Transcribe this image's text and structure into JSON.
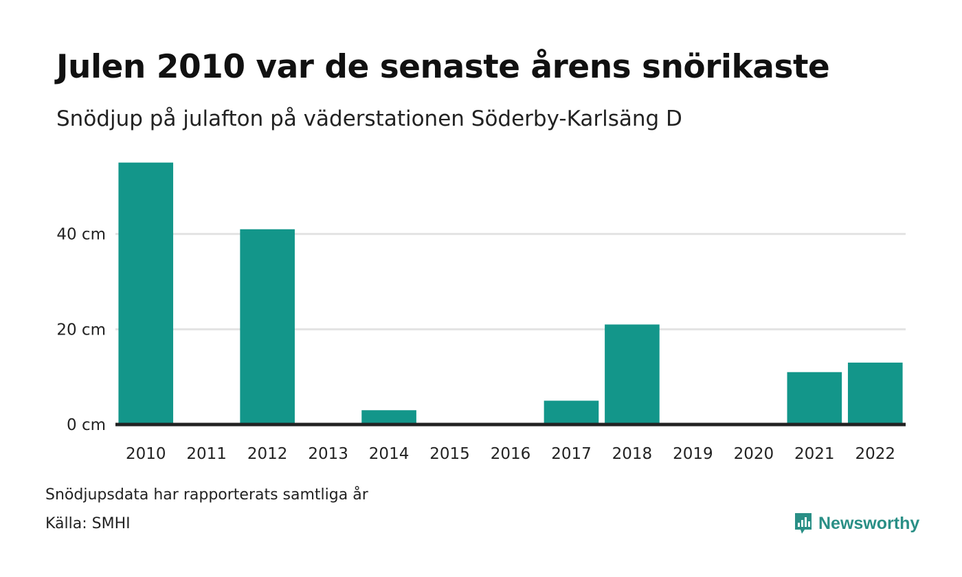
{
  "header": {
    "title": "Julen 2010 var de senaste årens snörikaste",
    "subtitle": "Snödjup på julafton på väderstationen Söderby-Karlsäng D"
  },
  "footer": {
    "note": "Snödjupsdata har rapporterats samtliga år",
    "source": "Källa: SMHI",
    "brand": "Newsworthy"
  },
  "colors": {
    "bar": "#13968a",
    "grid": "#e3e3e3",
    "axis": "#222222",
    "brand": "#2a8f86"
  },
  "chart_data": {
    "type": "bar",
    "categories": [
      "2010",
      "2011",
      "2012",
      "2013",
      "2014",
      "2015",
      "2016",
      "2017",
      "2018",
      "2019",
      "2020",
      "2021",
      "2022"
    ],
    "values": [
      55,
      0,
      41,
      0,
      3,
      0,
      0,
      5,
      21,
      0,
      0,
      11,
      13
    ],
    "unit": "cm",
    "ylim": [
      0,
      60
    ],
    "yticks": [
      0,
      20,
      40
    ],
    "ytick_labels": [
      "0 cm",
      "20 cm",
      "40 cm"
    ],
    "grid": true,
    "legend": "none"
  }
}
